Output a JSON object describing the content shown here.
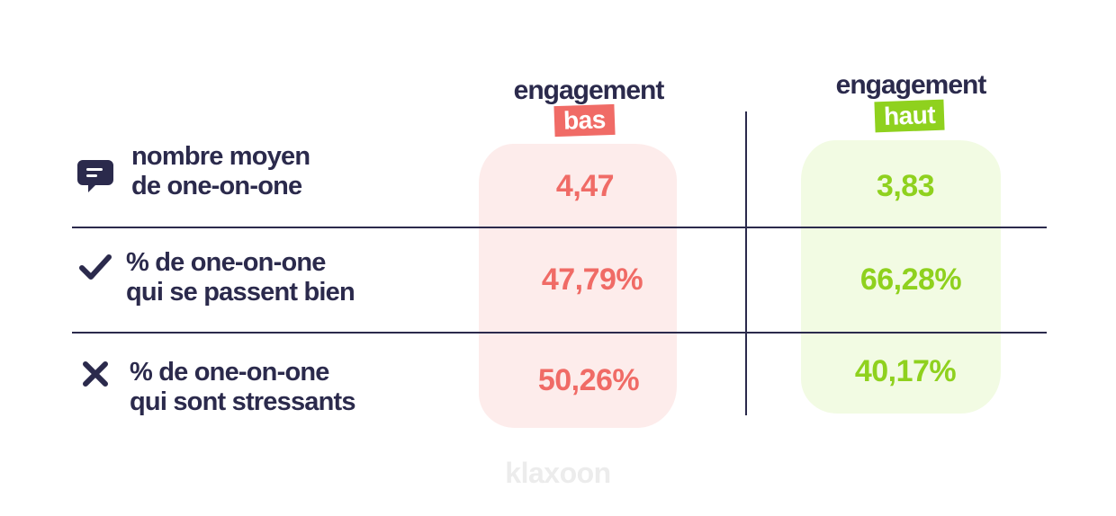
{
  "chart_data": {
    "type": "table",
    "columns": [
      {
        "title": "engagement",
        "badge": "bas",
        "color": "#f06b66"
      },
      {
        "title": "engagement",
        "badge": "haut",
        "color": "#8fd11e"
      }
    ],
    "rows": [
      {
        "icon": "chat-bubble-icon",
        "label_line1": "nombre moyen",
        "label_line2": "de one-on-one",
        "values": [
          "4,47",
          "3,83"
        ]
      },
      {
        "icon": "checkmark-icon",
        "label_line1": "% de one-on-one",
        "label_line2": "qui se passent bien",
        "values": [
          "47,79%",
          "66,28%"
        ]
      },
      {
        "icon": "cross-icon",
        "label_line1": "% de one-on-one",
        "label_line2": "qui sont stressants",
        "values": [
          "50,26%",
          "40,17%"
        ]
      }
    ]
  },
  "brand": {
    "name": "klaxoon"
  },
  "colors": {
    "text": "#2b2a4c",
    "low": "#f06b66",
    "high": "#8fd11e",
    "low_bg": "#fdeceb",
    "high_bg": "#f2fbe3"
  }
}
